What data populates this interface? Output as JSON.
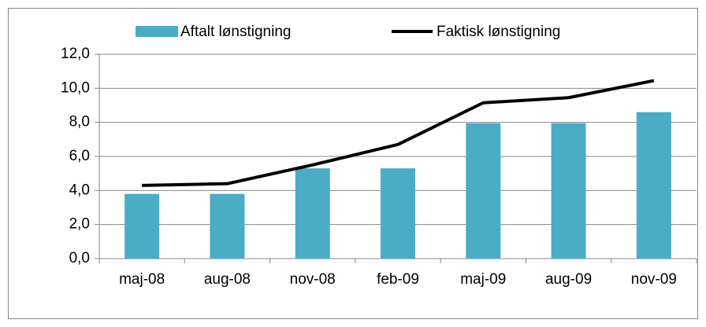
{
  "chart_data": {
    "type": "bar",
    "categories": [
      "maj-08",
      "aug-08",
      "nov-08",
      "feb-09",
      "maj-09",
      "aug-09",
      "nov-09"
    ],
    "series": [
      {
        "name": "Aftalt lønstigning",
        "type": "bar",
        "color": "#4bacc6",
        "values": [
          3.8,
          3.8,
          5.3,
          5.3,
          7.95,
          7.95,
          8.6
        ]
      },
      {
        "name": "Faktisk lønstigning",
        "type": "line",
        "color": "#000000",
        "values": [
          4.3,
          4.4,
          5.5,
          6.7,
          9.15,
          9.45,
          10.45
        ]
      }
    ],
    "ylim": [
      0,
      12
    ],
    "yticks": [
      {
        "value": 0,
        "label": "0,0"
      },
      {
        "value": 2,
        "label": "2,0"
      },
      {
        "value": 4,
        "label": "4,0"
      },
      {
        "value": 6,
        "label": "6,0"
      },
      {
        "value": 8,
        "label": "8,0"
      },
      {
        "value": 10,
        "label": "10,0"
      },
      {
        "value": 12,
        "label": "12,0"
      }
    ],
    "grid": true,
    "legend": "top"
  }
}
